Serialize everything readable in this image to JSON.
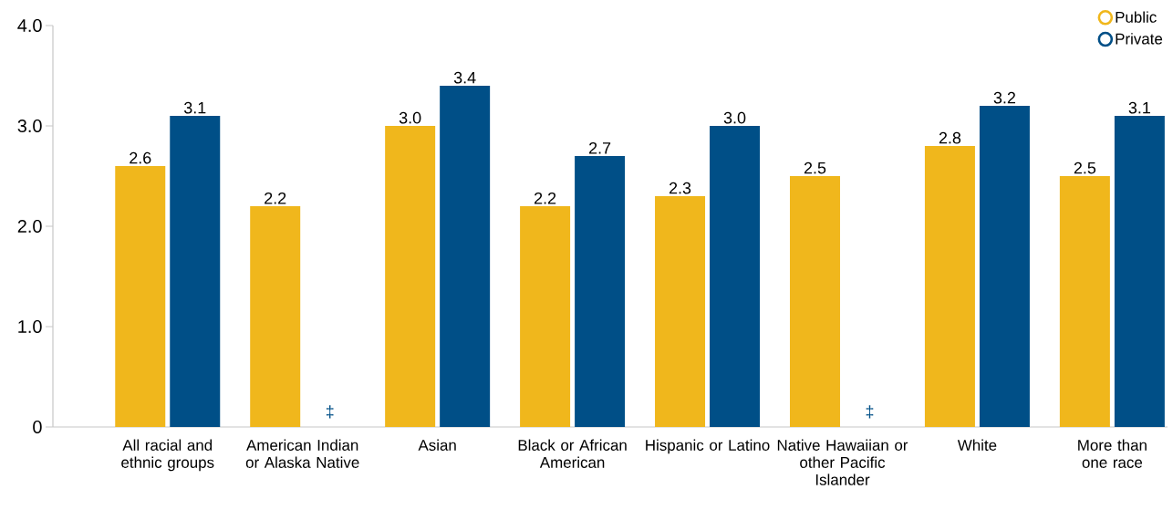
{
  "chart_data": {
    "type": "bar",
    "categories": [
      "All racial and ethnic groups",
      "American Indian or Alaska Native",
      "Asian",
      "Black or African American",
      "Hispanic or Latino",
      "Native Hawaiian or other Pacific Islander",
      "White",
      "More than one race"
    ],
    "series": [
      {
        "name": "Public",
        "color": "#f0b71c",
        "values": [
          2.6,
          2.2,
          3.0,
          2.2,
          2.3,
          2.5,
          2.8,
          2.5
        ],
        "value_labels": [
          "2.6",
          "2.2",
          "3.0",
          "2.2",
          "2.3",
          "2.5",
          "2.8",
          "2.5"
        ]
      },
      {
        "name": "Private",
        "color": "#004f87",
        "values": [
          3.1,
          null,
          3.4,
          2.7,
          3.0,
          null,
          3.2,
          3.1
        ],
        "value_labels": [
          "3.1",
          "‡",
          "3.4",
          "2.7",
          "3.0",
          "‡",
          "3.2",
          "3.1"
        ]
      }
    ],
    "ylim": [
      0,
      4
    ],
    "yticks": [
      0,
      {
        "value": 1,
        "label": "1.0"
      },
      {
        "value": 2,
        "label": "2.0"
      },
      {
        "value": 3,
        "label": "3.0"
      },
      {
        "value": 4,
        "label": "4.0"
      }
    ],
    "legend": "top right",
    "grid": false
  }
}
